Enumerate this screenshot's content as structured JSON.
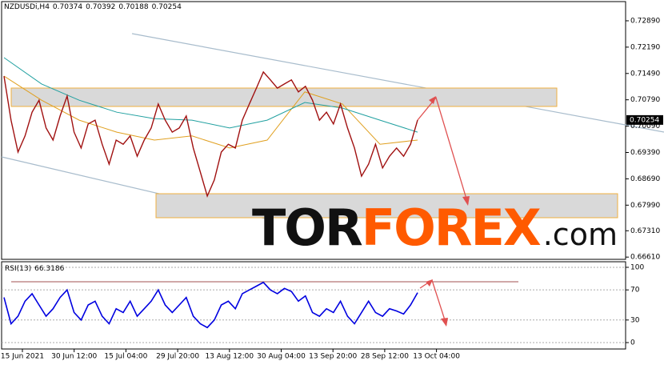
{
  "chart_data": [
    {
      "type": "line",
      "title": "NZDUSDi,H4",
      "ohlc": [
        0.70374,
        0.70392,
        0.70188,
        0.70254
      ],
      "last_price": 0.70254,
      "ylim": [
        0.6655,
        0.734
      ],
      "yticks": [
        {
          "value": 0.7289,
          "label": "0.72890"
        },
        {
          "value": 0.7219,
          "label": "0.72190"
        },
        {
          "value": 0.7149,
          "label": "0.71490"
        },
        {
          "value": 0.7079,
          "label": "0.70790"
        },
        {
          "value": 0.7009,
          "label": "0.70090"
        },
        {
          "value": 0.6939,
          "label": "0.69390"
        },
        {
          "value": 0.6869,
          "label": "0.68690"
        },
        {
          "value": 0.6799,
          "label": "0.67990"
        },
        {
          "value": 0.6731,
          "label": "0.67310"
        },
        {
          "value": 0.6661,
          "label": "0.66610"
        }
      ],
      "series": [
        {
          "color": "#a01010",
          "values": [
            0.7142,
            0.7025,
            0.694,
            0.6983,
            0.7046,
            0.7078,
            0.7004,
            0.6972,
            0.7036,
            0.7089,
            0.6993,
            0.6951,
            0.7015,
            0.7025,
            0.6961,
            0.6908,
            0.6972,
            0.6961,
            0.6983,
            0.6929,
            0.6972,
            0.7004,
            0.7068,
            0.7025,
            0.6993,
            0.7004,
            0.7036,
            0.6951,
            0.6887,
            0.6823,
            0.6866,
            0.694,
            0.6961,
            0.6951,
            0.7025,
            0.7068,
            0.711,
            0.7153,
            0.7132,
            0.711,
            0.7121,
            0.7132,
            0.71,
            0.7115,
            0.7078,
            0.7025,
            0.7046,
            0.7015,
            0.7068,
            0.7004,
            0.6951,
            0.6876,
            0.6908,
            0.6961,
            0.6898,
            0.6929,
            0.6951,
            0.6929,
            0.6961,
            0.70254
          ]
        },
        {
          "color": "#20a0a0",
          "values": [
            0.7191,
            0.7121,
            0.7078,
            0.7046,
            0.7029,
            0.7025,
            0.7004,
            0.7025,
            0.7072,
            0.7057,
            0.7025,
            0.6993
          ]
        },
        {
          "color": "#e0a020",
          "values": [
            0.7142,
            0.7078,
            0.7025,
            0.6993,
            0.6972,
            0.6983,
            0.6951,
            0.6972,
            0.71,
            0.7068,
            0.6961,
            0.6972
          ]
        }
      ]
    },
    {
      "type": "line",
      "title": "RSI(13)",
      "current": 66.3186,
      "ylim": [
        -8.5,
        107.4
      ],
      "yticks": [
        0,
        30,
        70,
        100
      ],
      "color": "#0000e0",
      "values": [
        60,
        25,
        35,
        55,
        65,
        50,
        35,
        45,
        60,
        70,
        40,
        30,
        50,
        55,
        35,
        25,
        45,
        40,
        55,
        35,
        45,
        55,
        70,
        50,
        40,
        50,
        60,
        35,
        25,
        20,
        30,
        50,
        55,
        45,
        65,
        70,
        75,
        80,
        70,
        65,
        72,
        68,
        55,
        62,
        40,
        35,
        45,
        40,
        55,
        35,
        25,
        40,
        55,
        40,
        35,
        45,
        42,
        38,
        50,
        66.3186
      ]
    }
  ],
  "time_labels": [
    "15 Jun 2021",
    "30 Jun 12:00",
    "15 Jul 04:00",
    "29 Jul 20:00",
    "13 Aug 12:00",
    "30 Aug 04:00",
    "13 Sep 20:00",
    "28 Sep 12:00",
    "13 Oct 04:00"
  ],
  "watermark": [
    "TOR",
    "FOREX",
    ".com"
  ]
}
